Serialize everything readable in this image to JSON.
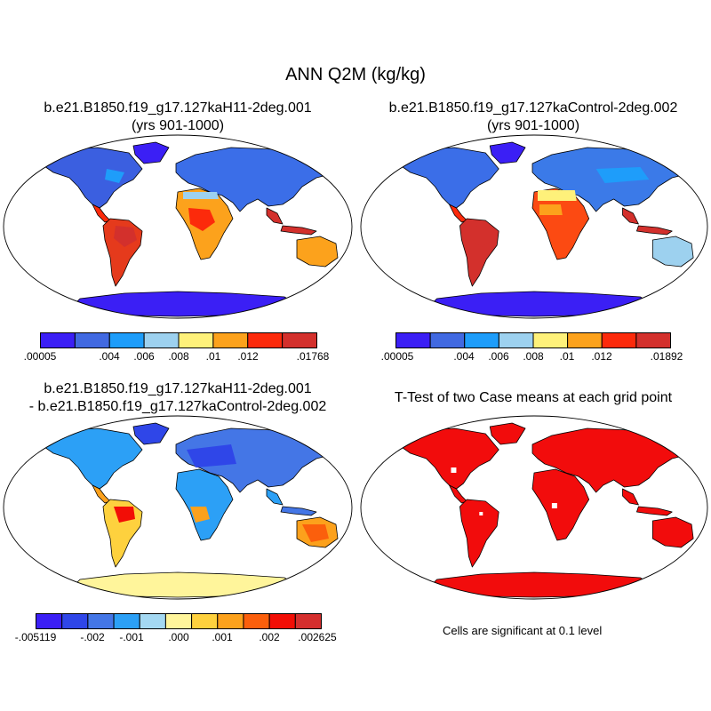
{
  "title": "ANN Q2M (kg/kg)",
  "panels": {
    "top_left": {
      "title_line1": "b.e21.B1850.f19_g17.127kaH11-2deg.001",
      "title_line2": "(yrs 901-1000)",
      "colorbar": {
        "colors": [
          "#3b1ff5",
          "#4169e1",
          "#1e9dfa",
          "#9dd1ef",
          "#fef17a",
          "#fca21c",
          "#fc2a0b",
          "#d3302c"
        ],
        "labels": [
          ".00005",
          ".004",
          ".006",
          ".008",
          ".01",
          ".012",
          ".01768"
        ]
      }
    },
    "top_right": {
      "title_line1": "b.e21.B1850.f19_g17.127kaControl-2deg.002",
      "title_line2": "(yrs 901-1000)",
      "colorbar": {
        "colors": [
          "#3b1ff5",
          "#4169e1",
          "#1e9dfa",
          "#9dd1ef",
          "#fef17a",
          "#fca21c",
          "#fc2a0b",
          "#d3302c"
        ],
        "labels": [
          ".00005",
          ".004",
          ".006",
          ".008",
          ".01",
          ".012",
          ".01892"
        ]
      }
    },
    "bottom_left": {
      "title_line1": "b.e21.B1850.f19_g17.127kaH11-2deg.001",
      "title_line2": "- b.e21.B1850.f19_g17.127kaControl-2deg.002",
      "colorbar": {
        "colors": [
          "#3b1ff5",
          "#2f46e8",
          "#4476e6",
          "#2ca0f6",
          "#a4d8f2",
          "#fff59b",
          "#fed13e",
          "#fca11c",
          "#fb5f0c",
          "#f20e06",
          "#d52f2e"
        ],
        "labels": [
          "-.005119",
          "-.002",
          "-.001",
          ".000",
          ".001",
          ".002",
          ".002625"
        ]
      }
    },
    "bottom_right": {
      "title_line1": "T-Test of two Case means at each grid point",
      "note": "Cells are significant at 0.1 level"
    }
  },
  "colors": {
    "ocean": "#ffffff",
    "coast": "#000000",
    "significant": "#f20c0c"
  }
}
